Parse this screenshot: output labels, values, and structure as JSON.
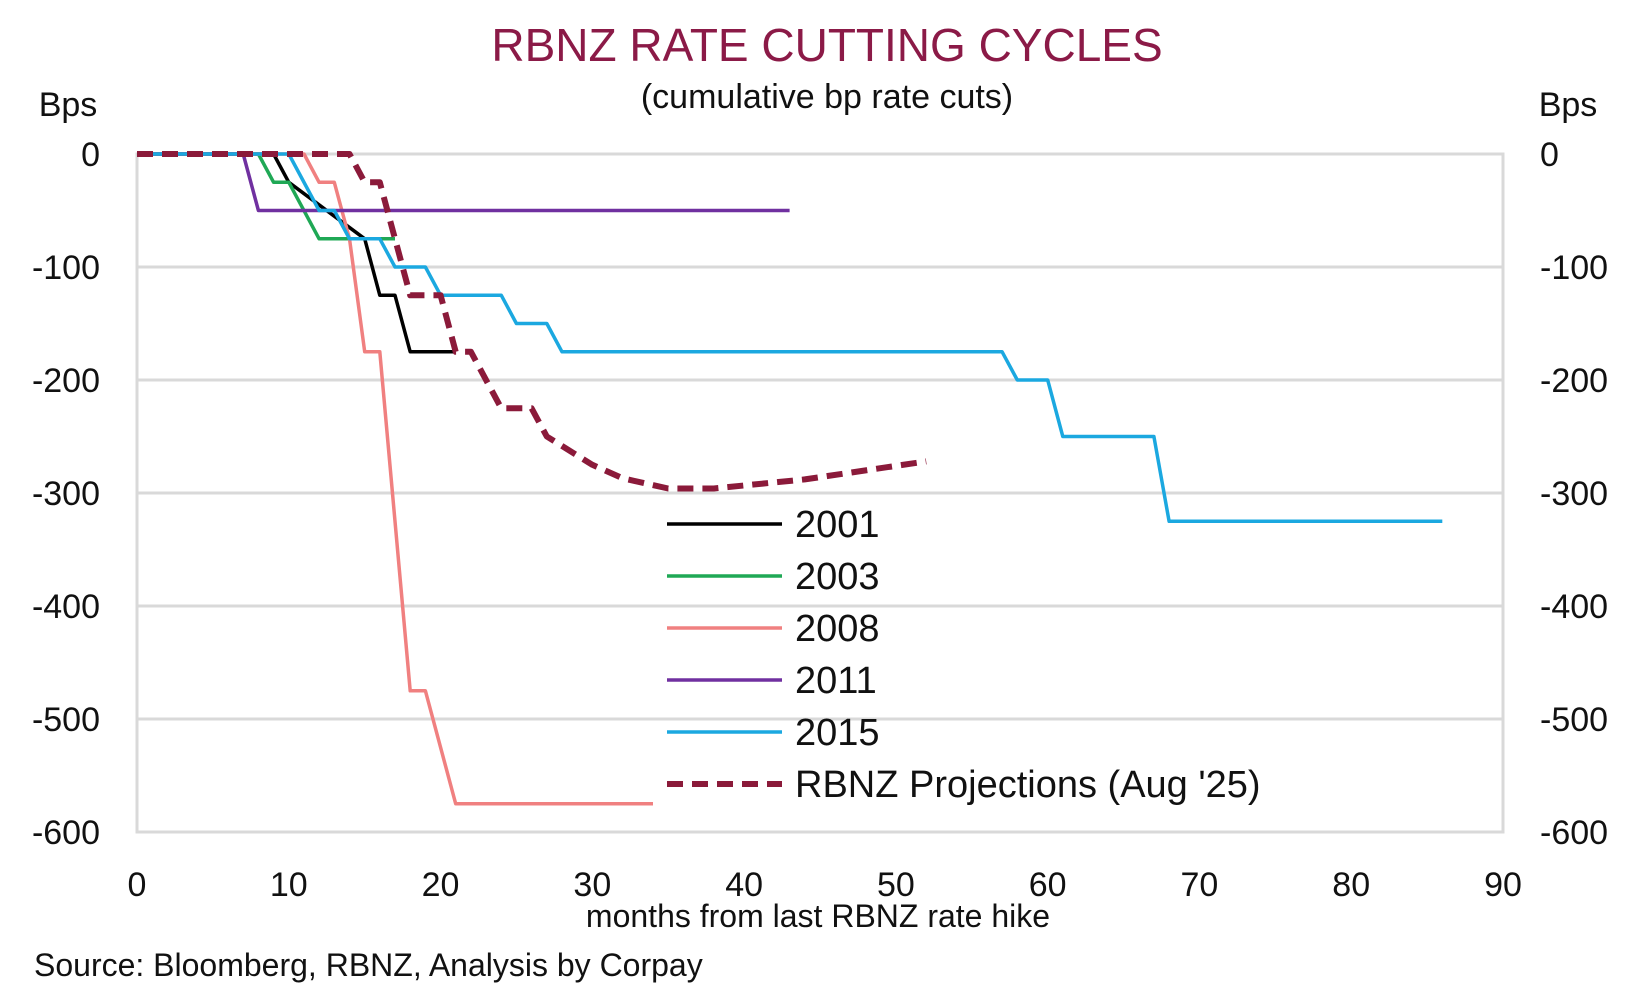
{
  "chart_data": {
    "type": "line",
    "title": "RBNZ RATE CUTTING CYCLES",
    "subtitle": "(cumulative bp rate cuts)",
    "y_unit_left": "Bps",
    "y_unit_right": "Bps",
    "xlabel": "months from last RBNZ rate hike",
    "source": "Source: Bloomberg, RBNZ, Analysis by Corpay",
    "xlim": [
      0,
      90
    ],
    "ylim": [
      -600,
      0
    ],
    "x_ticks": [
      0,
      10,
      20,
      30,
      40,
      50,
      60,
      70,
      80,
      90
    ],
    "y_ticks": [
      0,
      -100,
      -200,
      -300,
      -400,
      -500,
      -600
    ],
    "grid": "horizontal",
    "legend_position": "center",
    "series": [
      {
        "name": "2001",
        "color": "#000000",
        "dash": false,
        "points": [
          [
            0,
            0
          ],
          [
            9,
            0
          ],
          [
            10,
            -25
          ],
          [
            15,
            -75
          ],
          [
            16,
            -125
          ],
          [
            17,
            -125
          ],
          [
            18,
            -175
          ],
          [
            21,
            -175
          ]
        ]
      },
      {
        "name": "2003",
        "color": "#1fa855",
        "dash": false,
        "points": [
          [
            0,
            0
          ],
          [
            8,
            0
          ],
          [
            9,
            -25
          ],
          [
            10,
            -25
          ],
          [
            12,
            -75
          ],
          [
            17,
            -75
          ]
        ]
      },
      {
        "name": "2008",
        "color": "#f08080",
        "dash": false,
        "points": [
          [
            0,
            0
          ],
          [
            11,
            0
          ],
          [
            12,
            -25
          ],
          [
            13,
            -25
          ],
          [
            14,
            -75
          ],
          [
            15,
            -175
          ],
          [
            16,
            -175
          ],
          [
            18,
            -475
          ],
          [
            19,
            -475
          ],
          [
            21,
            -575
          ],
          [
            34,
            -575
          ]
        ]
      },
      {
        "name": "2011",
        "color": "#7030a0",
        "dash": false,
        "points": [
          [
            0,
            0
          ],
          [
            7,
            0
          ],
          [
            8,
            -50
          ],
          [
            43,
            -50
          ]
        ]
      },
      {
        "name": "2015",
        "color": "#1ba8e0",
        "dash": false,
        "points": [
          [
            0,
            0
          ],
          [
            10,
            0
          ],
          [
            12,
            -50
          ],
          [
            13,
            -50
          ],
          [
            14,
            -75
          ],
          [
            16,
            -75
          ],
          [
            17,
            -100
          ],
          [
            19,
            -100
          ],
          [
            20,
            -125
          ],
          [
            24,
            -125
          ],
          [
            25,
            -150
          ],
          [
            27,
            -150
          ],
          [
            28,
            -175
          ],
          [
            57,
            -175
          ],
          [
            58,
            -200
          ],
          [
            60,
            -200
          ],
          [
            61,
            -250
          ],
          [
            67,
            -250
          ],
          [
            68,
            -325
          ],
          [
            86,
            -325
          ]
        ]
      },
      {
        "name": "RBNZ Projections (Aug '25)",
        "color": "#8b1a3a",
        "dash": true,
        "points": [
          [
            0,
            0
          ],
          [
            14,
            0
          ],
          [
            15,
            -25
          ],
          [
            16,
            -25
          ],
          [
            17,
            -75
          ],
          [
            18,
            -125
          ],
          [
            20,
            -125
          ],
          [
            21,
            -175
          ],
          [
            22,
            -175
          ],
          [
            24,
            -225
          ],
          [
            26,
            -225
          ],
          [
            27,
            -250
          ],
          [
            30,
            -275
          ],
          [
            32,
            -287
          ],
          [
            35,
            -296
          ],
          [
            38,
            -296
          ],
          [
            44,
            -288
          ],
          [
            52,
            -272
          ]
        ]
      }
    ]
  }
}
